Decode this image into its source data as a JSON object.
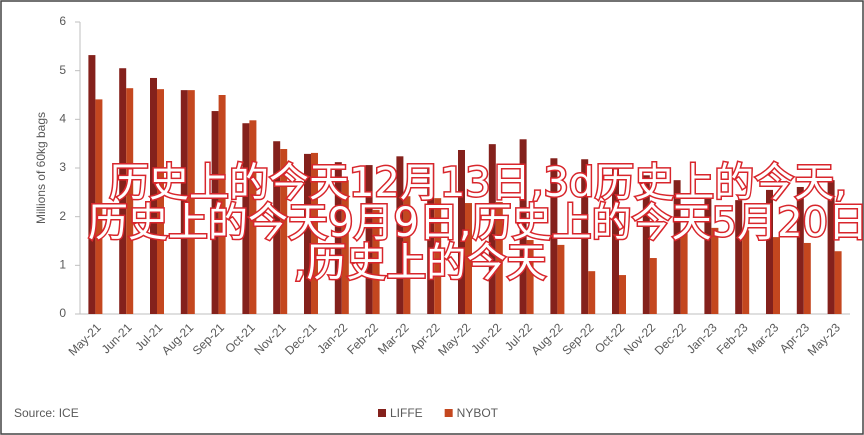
{
  "chart_data": {
    "type": "bar",
    "y_label": "Millions of 60kg bags",
    "source": "Source: ICE",
    "categories": [
      "May-21",
      "Jun-21",
      "Jul-21",
      "Aug-21",
      "Sep-21",
      "Oct-21",
      "Nov-21",
      "Dec-21",
      "Jan-22",
      "Feb-22",
      "Mar-22",
      "Apr-22",
      "May-22",
      "Jun-22",
      "Jul-22",
      "Aug-22",
      "Sep-22",
      "Oct-22",
      "Nov-22",
      "Dec-22",
      "Jan-23",
      "Feb-23",
      "Mar-23",
      "Apr-23",
      "May-23"
    ],
    "series": [
      {
        "name": "LIFFE",
        "color": "#84211c",
        "values": [
          5.32,
          5.05,
          4.85,
          4.6,
          4.17,
          3.92,
          3.55,
          3.29,
          3.12,
          3.06,
          3.24,
          3.1,
          3.37,
          3.49,
          3.59,
          3.2,
          3.18,
          3.04,
          2.85,
          2.75,
          2.44,
          2.34,
          2.55,
          2.61,
          2.75
        ]
      },
      {
        "name": "NYBOT",
        "color": "#c4471f",
        "values": [
          4.41,
          4.64,
          4.62,
          4.6,
          4.5,
          3.98,
          3.39,
          3.31,
          2.75,
          2.14,
          2.42,
          2.38,
          2.28,
          2.3,
          1.52,
          1.42,
          0.88,
          0.8,
          1.15,
          1.7,
          1.77,
          1.72,
          1.58,
          1.46,
          1.29
        ]
      }
    ],
    "ylim": [
      0,
      6
    ],
    "yticks": [
      0,
      1,
      2,
      3,
      4,
      5,
      6
    ],
    "grid": false,
    "legend": "bottom",
    "annotations": [
      "历史上的今天12月13日,3d历史上的今天,",
      "历史上的今天9月9日,历史上的今天5月20日",
      ",历史上的今天"
    ]
  }
}
